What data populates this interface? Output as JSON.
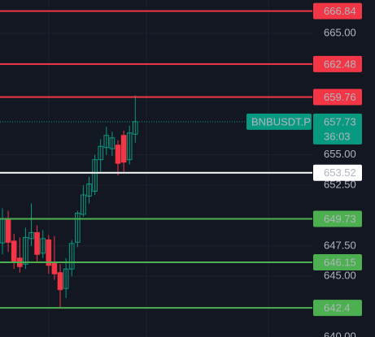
{
  "chart_data": {
    "type": "candlestick",
    "categories": [
      null,
      null,
      null,
      null,
      null,
      null,
      null,
      null,
      null,
      null,
      null,
      null,
      null,
      null,
      null,
      null,
      null,
      null,
      null,
      null,
      null,
      null,
      null,
      null
    ],
    "open": [
      647.75,
      649.7,
      647.9,
      646.5,
      646.0,
      648.1,
      648.6,
      646.9,
      648.0,
      646.1,
      645.3,
      644.0,
      645.6,
      647.8,
      650.1,
      651.6,
      652.0,
      654.6,
      655.6,
      655.5,
      655.8,
      656.6,
      654.6,
      656.7
    ],
    "high": [
      650.6,
      650.4,
      648.5,
      648.2,
      649.0,
      651.0,
      649.2,
      648.8,
      648.4,
      648.3,
      646.0,
      646.5,
      648.0,
      650.4,
      652.5,
      653.2,
      655.0,
      656.3,
      657.3,
      656.9,
      656.2,
      657.0,
      657.4,
      659.9
    ],
    "low": [
      646.8,
      647.0,
      645.6,
      645.3,
      645.6,
      647.5,
      646.2,
      646.5,
      645.2,
      644.7,
      642.4,
      643.2,
      645.0,
      647.4,
      649.9,
      651.0,
      651.7,
      653.6,
      655.0,
      654.9,
      653.3,
      653.6,
      654.2,
      656.0
    ],
    "close": [
      649.75,
      647.8,
      646.2,
      645.8,
      648.2,
      648.6,
      646.8,
      648.1,
      645.9,
      645.2,
      643.9,
      645.6,
      647.7,
      650.2,
      651.7,
      652.6,
      654.6,
      655.7,
      656.6,
      656.4,
      654.3,
      654.4,
      656.8,
      657.73
    ],
    "up_color": "#089981",
    "down_color": "#f23645",
    "ylim": [
      640,
      667.75
    ],
    "yticks": [
      {
        "value": 640,
        "label": "640.00"
      },
      {
        "value": 645,
        "label": "645.00"
      },
      {
        "value": 647.5,
        "label": "647.50"
      },
      {
        "value": 652.5,
        "label": "652.50"
      },
      {
        "value": 655,
        "label": "655.00"
      },
      {
        "value": 665,
        "label": "665.00"
      }
    ],
    "grid": true,
    "price_lines": [
      {
        "value": 666.84,
        "color": "#f23645"
      },
      {
        "value": 662.48,
        "color": "#f23645"
      },
      {
        "value": 659.76,
        "color": "#f23645"
      },
      {
        "value": 653.52,
        "color": "#ffffff"
      },
      {
        "value": 649.73,
        "color": "#4caf50"
      },
      {
        "value": 646.15,
        "color": "#4caf50"
      },
      {
        "value": 642.4,
        "color": "#4caf50"
      }
    ],
    "last_price": {
      "symbol": "BNBUSDT.P",
      "value": 657.73,
      "countdown": "36:03",
      "color": "#089981"
    }
  }
}
